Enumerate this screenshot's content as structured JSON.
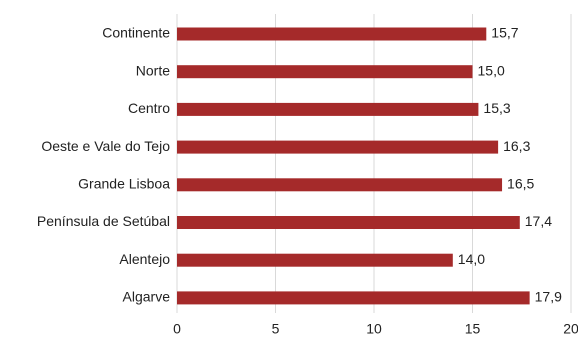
{
  "chart_data": {
    "type": "bar",
    "orientation": "horizontal",
    "categories": [
      "Continente",
      "Norte",
      "Centro",
      "Oeste e Vale do Tejo",
      "Grande Lisboa",
      "Península de Setúbal",
      "Alentejo",
      "Algarve"
    ],
    "values": [
      15.7,
      15.0,
      15.3,
      16.3,
      16.5,
      17.4,
      14.0,
      17.9
    ],
    "value_labels": [
      "15,7",
      "15,0",
      "15,3",
      "16,3",
      "16,5",
      "17,4",
      "14,0",
      "17,9"
    ],
    "xlim": [
      0,
      20
    ],
    "x_ticks": [
      0,
      5,
      10,
      15,
      20
    ],
    "x_tick_labels": [
      "0",
      "5",
      "10",
      "15",
      "20"
    ],
    "grid": "vertical",
    "bar_color": "#A52A2A",
    "grid_color": "#d9d9d9"
  }
}
